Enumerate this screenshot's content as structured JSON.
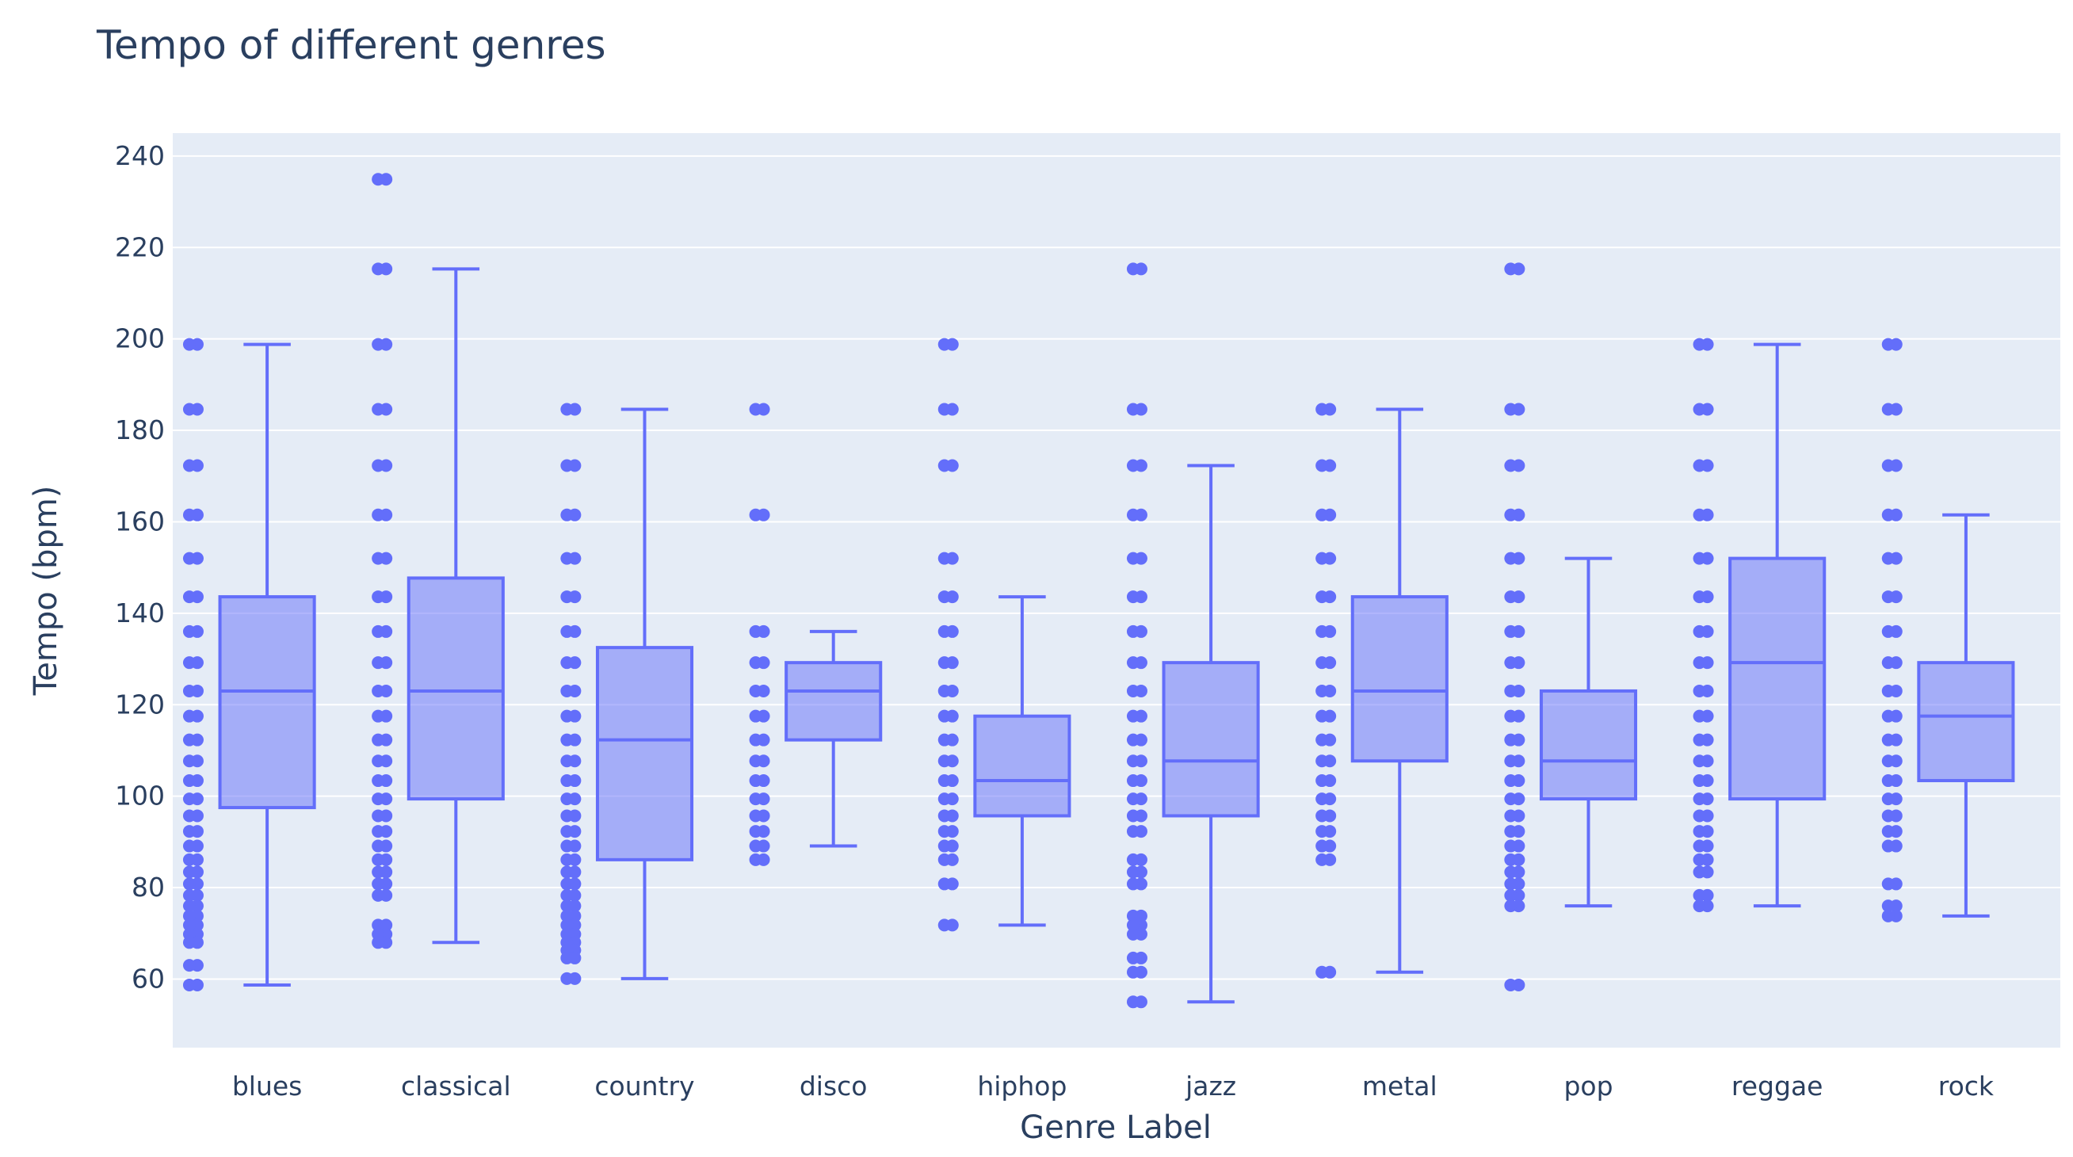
{
  "chart_data": {
    "type": "box",
    "title": "Tempo of different genres",
    "xlabel": "Genre Label",
    "ylabel": "Tempo (bpm)",
    "ylim": [
      45,
      245
    ],
    "yticks": [
      60,
      80,
      100,
      120,
      140,
      160,
      180,
      200,
      220,
      240
    ],
    "grid": true,
    "color": "#636efa",
    "plot_background": "#e5ecf6",
    "categories": [
      "blues",
      "classical",
      "country",
      "disco",
      "hiphop",
      "jazz",
      "metal",
      "pop",
      "reggae",
      "rock"
    ],
    "boxes": [
      {
        "name": "blues",
        "min": 58.7,
        "q1": 97.5,
        "median": 123.0,
        "q3": 143.6,
        "max": 198.8,
        "points": [
          198.8,
          184.6,
          172.3,
          161.5,
          152.0,
          143.6,
          136.0,
          129.2,
          123.0,
          117.5,
          112.3,
          107.7,
          103.4,
          99.4,
          95.7,
          92.3,
          89.1,
          86.1,
          83.4,
          80.8,
          78.3,
          76.0,
          73.8,
          71.8,
          69.8,
          68.0,
          63.0,
          58.7
        ]
      },
      {
        "name": "classical",
        "min": 68.0,
        "q1": 99.4,
        "median": 123.0,
        "q3": 147.7,
        "max": 215.3,
        "points": [
          234.9,
          215.3,
          198.8,
          184.6,
          172.3,
          161.5,
          152.0,
          143.6,
          136.0,
          129.2,
          123.0,
          117.5,
          112.3,
          107.7,
          103.4,
          99.4,
          95.7,
          92.3,
          89.1,
          86.1,
          83.4,
          80.8,
          78.3,
          71.8,
          69.8,
          68.0
        ]
      },
      {
        "name": "country",
        "min": 60.1,
        "q1": 86.1,
        "median": 112.3,
        "q3": 132.5,
        "max": 184.6,
        "points": [
          184.6,
          172.3,
          161.5,
          152.0,
          143.6,
          136.0,
          129.2,
          123.0,
          117.5,
          112.3,
          107.7,
          103.4,
          99.4,
          95.7,
          92.3,
          89.1,
          86.1,
          83.4,
          80.8,
          78.3,
          76.0,
          73.8,
          71.8,
          69.8,
          68.0,
          66.3,
          64.6,
          60.1
        ]
      },
      {
        "name": "disco",
        "min": 89.1,
        "q1": 112.3,
        "median": 123.0,
        "q3": 129.2,
        "max": 136.0,
        "points": [
          184.6,
          161.5,
          136.0,
          129.2,
          123.0,
          117.5,
          112.3,
          107.7,
          103.4,
          99.4,
          95.7,
          92.3,
          89.1,
          86.1
        ]
      },
      {
        "name": "hiphop",
        "min": 71.8,
        "q1": 95.7,
        "median": 103.4,
        "q3": 117.5,
        "max": 143.6,
        "points": [
          198.8,
          184.6,
          172.3,
          152.0,
          143.6,
          136.0,
          129.2,
          123.0,
          117.5,
          112.3,
          107.7,
          103.4,
          99.4,
          95.7,
          92.3,
          89.1,
          86.1,
          80.8,
          71.8
        ]
      },
      {
        "name": "jazz",
        "min": 55.0,
        "q1": 95.7,
        "median": 107.7,
        "q3": 129.2,
        "max": 172.3,
        "points": [
          215.3,
          184.6,
          172.3,
          161.5,
          152.0,
          143.6,
          136.0,
          129.2,
          123.0,
          117.5,
          112.3,
          107.7,
          103.4,
          99.4,
          95.7,
          92.3,
          86.1,
          83.4,
          80.8,
          73.8,
          71.8,
          69.8,
          64.6,
          61.5,
          55.0
        ]
      },
      {
        "name": "metal",
        "min": 61.5,
        "q1": 107.7,
        "median": 123.0,
        "q3": 143.6,
        "max": 184.6,
        "points": [
          184.6,
          172.3,
          161.5,
          152.0,
          143.6,
          136.0,
          129.2,
          123.0,
          117.5,
          112.3,
          107.7,
          103.4,
          99.4,
          95.7,
          92.3,
          89.1,
          86.1,
          61.5
        ]
      },
      {
        "name": "pop",
        "min": 76.0,
        "q1": 99.4,
        "median": 107.7,
        "q3": 123.0,
        "max": 152.0,
        "points": [
          215.3,
          184.6,
          172.3,
          161.5,
          152.0,
          143.6,
          136.0,
          129.2,
          123.0,
          117.5,
          112.3,
          107.7,
          103.4,
          99.4,
          95.7,
          92.3,
          89.1,
          86.1,
          83.4,
          80.8,
          78.3,
          76.0,
          58.7
        ]
      },
      {
        "name": "reggae",
        "min": 76.0,
        "q1": 99.4,
        "median": 129.2,
        "q3": 152.0,
        "max": 198.8,
        "points": [
          198.8,
          184.6,
          172.3,
          161.5,
          152.0,
          143.6,
          136.0,
          129.2,
          123.0,
          117.5,
          112.3,
          107.7,
          103.4,
          99.4,
          95.7,
          92.3,
          89.1,
          86.1,
          83.4,
          78.3,
          76.0
        ]
      },
      {
        "name": "rock",
        "min": 73.8,
        "q1": 103.4,
        "median": 117.5,
        "q3": 129.2,
        "max": 161.5,
        "points": [
          198.8,
          184.6,
          172.3,
          161.5,
          152.0,
          143.6,
          136.0,
          129.2,
          123.0,
          117.5,
          112.3,
          107.7,
          103.4,
          99.4,
          95.7,
          92.3,
          89.1,
          80.8,
          76.0,
          73.8
        ]
      }
    ]
  }
}
